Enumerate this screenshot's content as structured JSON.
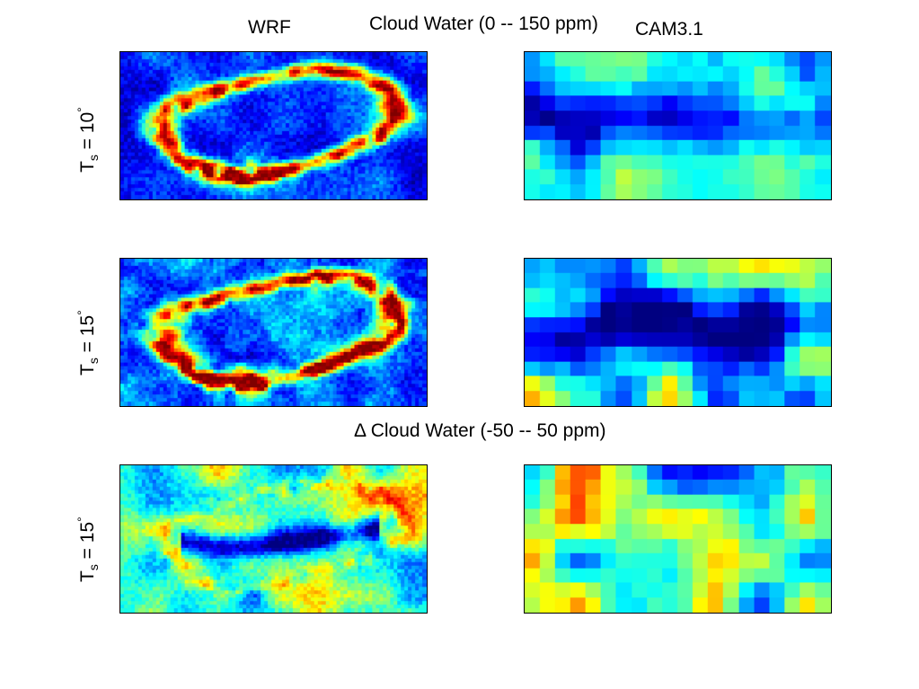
{
  "titles": {
    "left_column": "WRF",
    "right_column": "CAM3.1",
    "top_section": "Cloud Water (0 -- 150 ppm)",
    "bottom_section": "Δ Cloud Water (-50 -- 50 ppm)"
  },
  "row_labels": [
    {
      "main": "T",
      "sub": "s",
      "eq": " = 10",
      "sup": "°"
    },
    {
      "main": "T",
      "sub": "s",
      "eq": " = 15",
      "sup": "°"
    },
    {
      "main": "T",
      "sub": "s",
      "eq": " = 15",
      "sup": "°"
    }
  ],
  "chart_data": [
    {
      "type": "heatmap",
      "model": "WRF",
      "row_label": "T_s = 10°",
      "quantity": "Cloud Water",
      "range": [
        0,
        150
      ],
      "units": "ppm",
      "colormap": "jet",
      "grid_cols": 85,
      "grid_rows": 41
    },
    {
      "type": "heatmap",
      "model": "CAM3.1",
      "row_label": "T_s = 10°",
      "quantity": "Cloud Water",
      "range": [
        0,
        150
      ],
      "units": "ppm",
      "colormap": "jet",
      "grid_cols": 20,
      "grid_rows": 10
    },
    {
      "type": "heatmap",
      "model": "WRF",
      "row_label": "T_s = 15°",
      "quantity": "Cloud Water",
      "range": [
        0,
        150
      ],
      "units": "ppm",
      "colormap": "jet",
      "grid_cols": 85,
      "grid_rows": 41
    },
    {
      "type": "heatmap",
      "model": "CAM3.1",
      "row_label": "T_s = 15°",
      "quantity": "Cloud Water",
      "range": [
        0,
        150
      ],
      "units": "ppm",
      "colormap": "jet",
      "grid_cols": 20,
      "grid_rows": 10
    },
    {
      "type": "heatmap",
      "model": "WRF",
      "row_label": "T_s = 15°",
      "quantity": "Δ Cloud Water",
      "range": [
        -50,
        50
      ],
      "units": "ppm",
      "colormap": "jet",
      "grid_cols": 85,
      "grid_rows": 41
    },
    {
      "type": "heatmap",
      "model": "CAM3.1",
      "row_label": "T_s = 15°",
      "quantity": "Δ Cloud Water",
      "range": [
        -50,
        50
      ],
      "units": "ppm",
      "colormap": "jet",
      "grid_cols": 20,
      "grid_rows": 10
    }
  ]
}
